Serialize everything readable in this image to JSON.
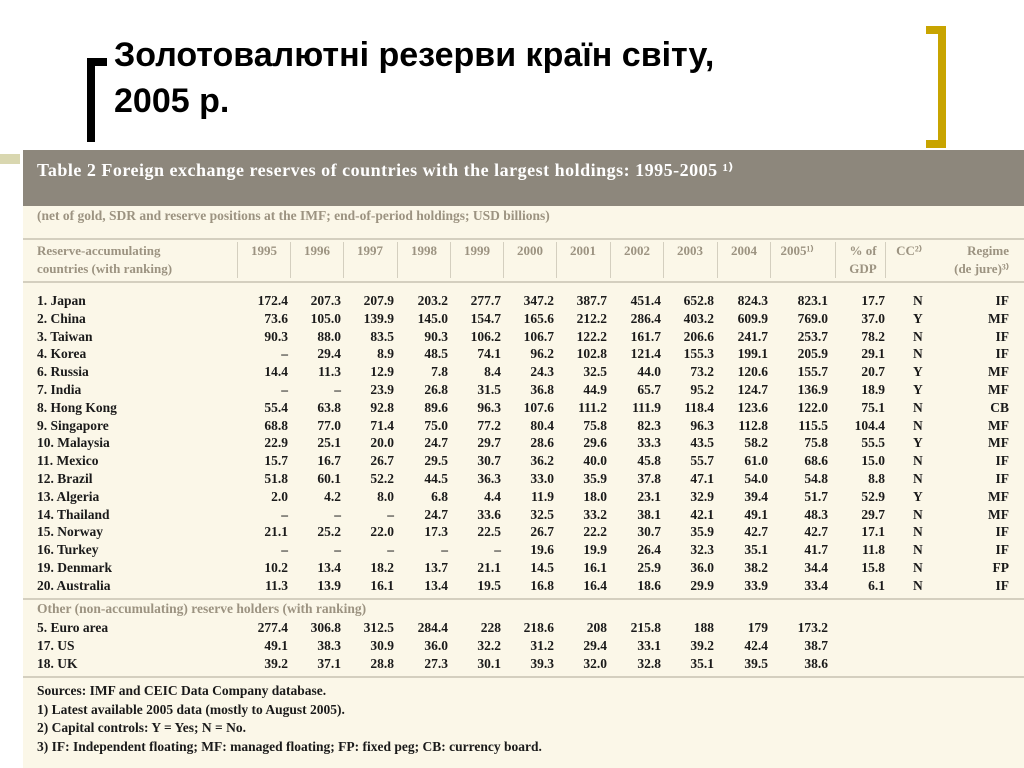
{
  "slide": {
    "title_line1": "Золотовалютні резерви країн світу,",
    "title_line2": "2005 р."
  },
  "table": {
    "caption": "Table 2 Foreign exchange reserves of countries with the largest holdings: 1995-2005 ¹⁾",
    "subtitle": "(net of gold, SDR and reserve positions at the IMF; end-of-period holdings; USD billions)",
    "headers": {
      "country_line1": "Reserve-accumulating",
      "country_line2": "countries (with ranking)",
      "years": [
        "1995",
        "1996",
        "1997",
        "1998",
        "1999",
        "2000",
        "2001",
        "2002",
        "2003",
        "2004",
        "2005¹⁾"
      ],
      "gdp_line1": "% of",
      "gdp_line2": "GDP",
      "cc": "CC²⁾",
      "regime_line1": "Regime",
      "regime_line2": "(de jure)³⁾"
    },
    "accumulating": [
      {
        "name": "1. Japan",
        "values": [
          "172.4",
          "207.3",
          "207.9",
          "203.2",
          "277.7",
          "347.2",
          "387.7",
          "451.4",
          "652.8",
          "824.3",
          "823.1"
        ],
        "gdp": "17.7",
        "cc": "N",
        "regime": "IF"
      },
      {
        "name": "2. China",
        "values": [
          "73.6",
          "105.0",
          "139.9",
          "145.0",
          "154.7",
          "165.6",
          "212.2",
          "286.4",
          "403.2",
          "609.9",
          "769.0"
        ],
        "gdp": "37.0",
        "cc": "Y",
        "regime": "MF"
      },
      {
        "name": "3. Taiwan",
        "values": [
          "90.3",
          "88.0",
          "83.5",
          "90.3",
          "106.2",
          "106.7",
          "122.2",
          "161.7",
          "206.6",
          "241.7",
          "253.7"
        ],
        "gdp": "78.2",
        "cc": "N",
        "regime": "IF"
      },
      {
        "name": "4. Korea",
        "values": [
          "–",
          "29.4",
          "8.9",
          "48.5",
          "74.1",
          "96.2",
          "102.8",
          "121.4",
          "155.3",
          "199.1",
          "205.9"
        ],
        "gdp": "29.1",
        "cc": "N",
        "regime": "IF"
      },
      {
        "name": "6. Russia",
        "values": [
          "14.4",
          "11.3",
          "12.9",
          "7.8",
          "8.4",
          "24.3",
          "32.5",
          "44.0",
          "73.2",
          "120.6",
          "155.7"
        ],
        "gdp": "20.7",
        "cc": "Y",
        "regime": "MF"
      },
      {
        "name": "7. India",
        "values": [
          "–",
          "–",
          "23.9",
          "26.8",
          "31.5",
          "36.8",
          "44.9",
          "65.7",
          "95.2",
          "124.7",
          "136.9"
        ],
        "gdp": "18.9",
        "cc": "Y",
        "regime": "MF"
      },
      {
        "name": "8. Hong Kong",
        "values": [
          "55.4",
          "63.8",
          "92.8",
          "89.6",
          "96.3",
          "107.6",
          "111.2",
          "111.9",
          "118.4",
          "123.6",
          "122.0"
        ],
        "gdp": "75.1",
        "cc": "N",
        "regime": "CB"
      },
      {
        "name": "9. Singapore",
        "values": [
          "68.8",
          "77.0",
          "71.4",
          "75.0",
          "77.2",
          "80.4",
          "75.8",
          "82.3",
          "96.3",
          "112.8",
          "115.5"
        ],
        "gdp": "104.4",
        "cc": "N",
        "regime": "MF"
      },
      {
        "name": "10. Malaysia",
        "values": [
          "22.9",
          "25.1",
          "20.0",
          "24.7",
          "29.7",
          "28.6",
          "29.6",
          "33.3",
          "43.5",
          "58.2",
          "75.8"
        ],
        "gdp": "55.5",
        "cc": "Y",
        "regime": "MF"
      },
      {
        "name": "11. Mexico",
        "values": [
          "15.7",
          "16.7",
          "26.7",
          "29.5",
          "30.7",
          "36.2",
          "40.0",
          "45.8",
          "55.7",
          "61.0",
          "68.6"
        ],
        "gdp": "15.0",
        "cc": "N",
        "regime": "IF"
      },
      {
        "name": "12. Brazil",
        "values": [
          "51.8",
          "60.1",
          "52.2",
          "44.5",
          "36.3",
          "33.0",
          "35.9",
          "37.8",
          "47.1",
          "54.0",
          "54.8"
        ],
        "gdp": "8.8",
        "cc": "N",
        "regime": "IF"
      },
      {
        "name": "13. Algeria",
        "values": [
          "2.0",
          "4.2",
          "8.0",
          "6.8",
          "4.4",
          "11.9",
          "18.0",
          "23.1",
          "32.9",
          "39.4",
          "51.7"
        ],
        "gdp": "52.9",
        "cc": "Y",
        "regime": "MF"
      },
      {
        "name": "14. Thailand",
        "values": [
          "–",
          "–",
          "–",
          "24.7",
          "33.6",
          "32.5",
          "33.2",
          "38.1",
          "42.1",
          "49.1",
          "48.3"
        ],
        "gdp": "29.7",
        "cc": "N",
        "regime": "MF"
      },
      {
        "name": "15. Norway",
        "values": [
          "21.1",
          "25.2",
          "22.0",
          "17.3",
          "22.5",
          "26.7",
          "22.2",
          "30.7",
          "35.9",
          "42.7",
          "42.7"
        ],
        "gdp": "17.1",
        "cc": "N",
        "regime": "IF"
      },
      {
        "name": "16. Turkey",
        "values": [
          "–",
          "–",
          "–",
          "–",
          "–",
          "19.6",
          "19.9",
          "26.4",
          "32.3",
          "35.1",
          "41.7"
        ],
        "gdp": "11.8",
        "cc": "N",
        "regime": "IF"
      },
      {
        "name": "19. Denmark",
        "values": [
          "10.2",
          "13.4",
          "18.2",
          "13.7",
          "21.1",
          "14.5",
          "16.1",
          "25.9",
          "36.0",
          "38.2",
          "34.4"
        ],
        "gdp": "15.8",
        "cc": "N",
        "regime": "FP"
      },
      {
        "name": "20. Australia",
        "values": [
          "11.3",
          "13.9",
          "16.1",
          "13.4",
          "19.5",
          "16.8",
          "16.4",
          "18.6",
          "29.9",
          "33.9",
          "33.4"
        ],
        "gdp": "6.1",
        "cc": "N",
        "regime": "IF"
      }
    ],
    "other_label": "Other (non-accumulating) reserve holders (with ranking)",
    "other": [
      {
        "name": "5. Euro area",
        "values": [
          "277.4",
          "306.8",
          "312.5",
          "284.4",
          "228",
          "218.6",
          "208",
          "215.8",
          "188",
          "179",
          "173.2"
        ]
      },
      {
        "name": "17. US",
        "values": [
          "49.1",
          "38.3",
          "30.9",
          "36.0",
          "32.2",
          "31.2",
          "29.4",
          "33.1",
          "39.2",
          "42.4",
          "38.7"
        ]
      },
      {
        "name": "18. UK",
        "values": [
          "39.2",
          "37.1",
          "28.8",
          "27.3",
          "30.1",
          "39.3",
          "32.0",
          "32.8",
          "35.1",
          "39.5",
          "38.6"
        ]
      }
    ],
    "notes": [
      "Sources: IMF and CEIC Data Company database.",
      "1) Latest available 2005 data (mostly to August 2005).",
      "2) Capital controls: Y = Yes; N = No.",
      "3) IF: Independent floating; MF: managed floating; FP: fixed peg; CB: currency board."
    ]
  }
}
